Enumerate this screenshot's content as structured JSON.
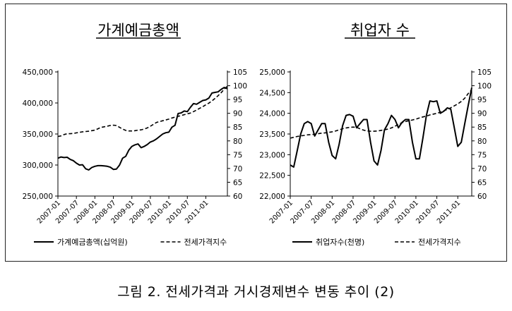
{
  "caption": "그림 2. 전세가격과 거시경제변수 변동 추이 (2)",
  "chart_data": [
    {
      "type": "line",
      "title": "가계예금총액",
      "xlabel": "",
      "ylabel": "",
      "x_tick_labels": [
        "2007-01",
        "2007-07",
        "2008-01",
        "2008-07",
        "2009-01",
        "2009-07",
        "2010-01",
        "2010-07",
        "2011-01"
      ],
      "x_range": [
        "2007-01",
        "2011-04"
      ],
      "y_left_range": [
        250000,
        450000
      ],
      "y_left_ticks": [
        "250,000",
        "300,000",
        "350,000",
        "400,000",
        "450,000"
      ],
      "y_right_range": [
        60,
        105
      ],
      "y_right_ticks": [
        "60",
        "65",
        "70",
        "75",
        "80",
        "85",
        "90",
        "95",
        "100",
        "105"
      ],
      "legend_position": "bottom",
      "grid": false,
      "series": [
        {
          "name": "가계예금총액(십억원)",
          "axis": "left",
          "style": "solid",
          "values": [
            311000,
            313000,
            312000,
            312500,
            309000,
            307000,
            303000,
            300000,
            300500,
            294000,
            292000,
            296000,
            298000,
            299000,
            299000,
            298500,
            298000,
            296500,
            293000,
            293500,
            300000,
            311000,
            314000,
            324000,
            330000,
            332500,
            334000,
            328000,
            330000,
            333000,
            337000,
            339000,
            342000,
            346000,
            350000,
            352000,
            353000,
            361000,
            364000,
            383000,
            384000,
            387000,
            386000,
            393000,
            399000,
            398000,
            401000,
            404000,
            405000,
            408000,
            416000,
            417000,
            418000,
            422000,
            425000,
            423000
          ]
        },
        {
          "name": "전세가격지수",
          "axis": "right",
          "style": "dashed",
          "values": [
            81.6,
            81.8,
            82.3,
            82.6,
            82.6,
            82.7,
            82.9,
            83.1,
            83.3,
            83.4,
            83.5,
            83.7,
            83.9,
            84.4,
            84.9,
            85.1,
            85.3,
            85.6,
            85.7,
            85.6,
            84.9,
            84.3,
            83.8,
            83.6,
            83.6,
            83.7,
            83.9,
            84.0,
            84.3,
            84.7,
            85.3,
            86.0,
            86.7,
            87.0,
            87.3,
            87.6,
            87.9,
            88.3,
            88.6,
            88.9,
            89.2,
            89.5,
            89.8,
            90.1,
            90.6,
            91.2,
            91.8,
            92.4,
            93.1,
            93.7,
            94.5,
            95.4,
            96.4,
            97.5,
            98.8,
            99.8
          ]
        }
      ]
    },
    {
      "type": "line",
      "title": "취업자 수",
      "xlabel": "",
      "ylabel": "",
      "x_tick_labels": [
        "2007-01",
        "2007-07",
        "2008-01",
        "2008-07",
        "2009-01",
        "2009-07",
        "2010-01",
        "2010-07",
        "2011-01"
      ],
      "x_range": [
        "2007-01",
        "2011-05"
      ],
      "y_left_range": [
        22000,
        25000
      ],
      "y_left_ticks": [
        "22,000",
        "22,500",
        "23,000",
        "23,500",
        "24,000",
        "24,500",
        "25,000"
      ],
      "y_right_range": [
        60,
        105
      ],
      "y_right_ticks": [
        "60",
        "65",
        "70",
        "75",
        "80",
        "85",
        "90",
        "95",
        "100",
        "105"
      ],
      "legend_position": "bottom",
      "grid": false,
      "series": [
        {
          "name": "취업자수(천명)",
          "axis": "left",
          "style": "solid",
          "values": [
            22750,
            22700,
            23100,
            23500,
            23750,
            23800,
            23750,
            23450,
            23600,
            23750,
            23750,
            23300,
            22980,
            22900,
            23250,
            23700,
            23950,
            23970,
            23930,
            23650,
            23750,
            23850,
            23850,
            23300,
            22850,
            22750,
            23100,
            23600,
            23750,
            23950,
            23850,
            23650,
            23780,
            23850,
            23850,
            23300,
            22900,
            22900,
            23400,
            23950,
            24300,
            24280,
            24300,
            24000,
            24050,
            24130,
            24100,
            23650,
            23200,
            23300,
            23750,
            24200,
            24620
          ]
        },
        {
          "name": "전세가격지수",
          "axis": "right",
          "style": "dashed",
          "values": [
            81.0,
            81.3,
            81.6,
            81.8,
            82.0,
            82.2,
            82.3,
            82.4,
            82.6,
            82.8,
            82.9,
            83.1,
            83.3,
            83.6,
            84.0,
            84.4,
            84.7,
            84.9,
            85.0,
            84.9,
            84.4,
            83.9,
            83.6,
            83.5,
            83.5,
            83.6,
            83.8,
            84.0,
            84.3,
            84.7,
            85.3,
            86.0,
            86.6,
            87.0,
            87.3,
            87.6,
            87.9,
            88.3,
            88.7,
            89.0,
            89.4,
            89.7,
            90.0,
            90.4,
            90.9,
            91.4,
            92.0,
            92.7,
            93.4,
            94.3,
            95.5,
            97.2,
            98.5
          ]
        }
      ]
    }
  ]
}
